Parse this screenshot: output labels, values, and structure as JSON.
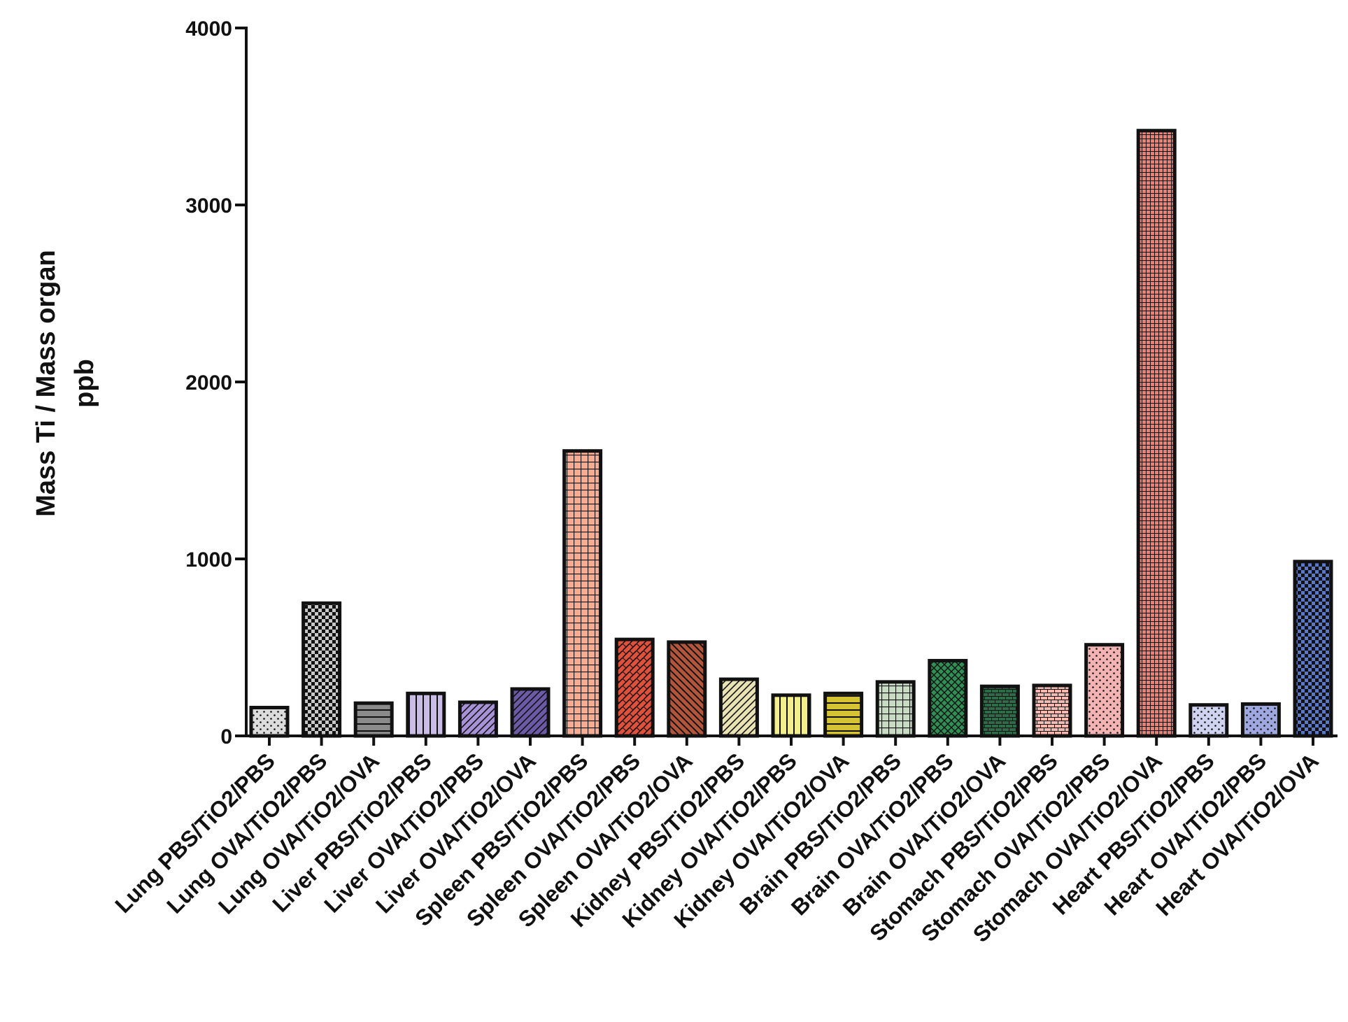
{
  "chart_data": {
    "type": "bar",
    "title": "",
    "xlabel": "",
    "ylabel": "Mass Ti / Mass organ",
    "ylabel_unit": "ppb",
    "ylim": [
      0,
      4000
    ],
    "yticks": [
      0,
      1000,
      2000,
      3000,
      4000
    ],
    "grid": false,
    "categories": [
      "Lung PBS/TiO2/PBS",
      "Lung OVA/TiO2/PBS",
      "Lung OVA/TiO2/OVA",
      "Liver PBS/TiO2/PBS",
      "Liver OVA/TiO2/PBS",
      "Liver OVA/TiO2/OVA",
      "Spleen PBS/TiO2/PBS",
      "Spleen OVA/TiO2/PBS",
      "Spleen OVA/TiO2/OVA",
      "Kidney PBS/TiO2/PBS",
      "Kidney OVA/TiO2/PBS",
      "Kidney OVA/TiO2/OVA",
      "Brain PBS/TiO2/PBS",
      "Brain OVA/TiO2/PBS",
      "Brain OVA/TiO2/OVA",
      "Stomach PBS/TiO2/PBS",
      "Stomach OVA/TiO2/PBS",
      "Stomach OVA/TiO2/OVA",
      "Heart PBS/TiO2/PBS",
      "Heart OVA/TiO2/PBS",
      "Heart OVA/TiO2/OVA"
    ],
    "values": [
      160,
      750,
      185,
      240,
      190,
      265,
      1610,
      545,
      530,
      320,
      230,
      240,
      305,
      425,
      280,
      285,
      515,
      3420,
      175,
      180,
      985
    ],
    "bar_styles": [
      {
        "fill": "#dcdcdc",
        "pattern": "dots"
      },
      {
        "fill": "#c8c8c8",
        "pattern": "checker"
      },
      {
        "fill": "#8a8a8a",
        "pattern": "hlines"
      },
      {
        "fill": "#c9bde6",
        "pattern": "vlines"
      },
      {
        "fill": "#a792d8",
        "pattern": "diag"
      },
      {
        "fill": "#6c5aa6",
        "pattern": "diag"
      },
      {
        "fill": "#f7ab90",
        "pattern": "grid"
      },
      {
        "fill": "#e0503a",
        "pattern": "weave"
      },
      {
        "fill": "#b3553a",
        "pattern": "backdiag"
      },
      {
        "fill": "#e9e2b2",
        "pattern": "diag"
      },
      {
        "fill": "#f3f08c",
        "pattern": "vlines"
      },
      {
        "fill": "#d5c334",
        "pattern": "hlines"
      },
      {
        "fill": "#c8dcc3",
        "pattern": "grid"
      },
      {
        "fill": "#2f8f55",
        "pattern": "crosshatch"
      },
      {
        "fill": "#2e6b49",
        "pattern": "brick"
      },
      {
        "fill": "#f5b9b0",
        "pattern": "brick"
      },
      {
        "fill": "#f4b3b3",
        "pattern": "dots"
      },
      {
        "fill": "#f07f73",
        "pattern": "finegrid"
      },
      {
        "fill": "#cfd3f0",
        "pattern": "dots"
      },
      {
        "fill": "#9ea7e0",
        "pattern": "dots"
      },
      {
        "fill": "#5b78c8",
        "pattern": "checker"
      }
    ]
  }
}
